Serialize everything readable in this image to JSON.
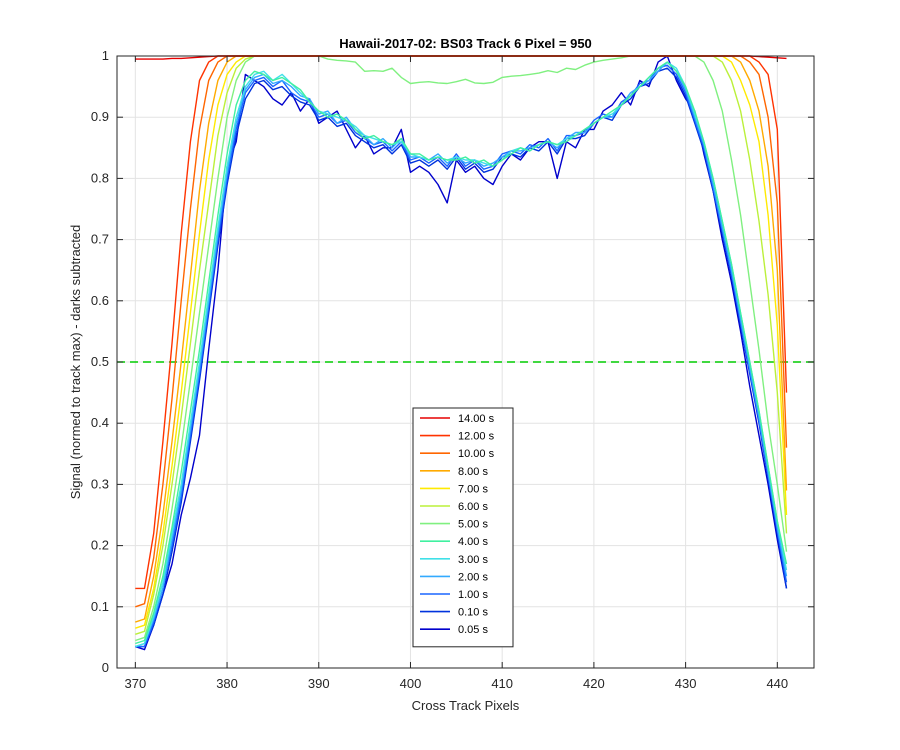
{
  "chart_data": {
    "type": "line",
    "title": "Hawaii-2017-02: BS03  Track 6 Pixel = 950",
    "xlabel": "Cross Track Pixels",
    "ylabel": "Signal (normed to track max) - darks subtracted",
    "xlim": [
      368,
      444
    ],
    "ylim": [
      0,
      1
    ],
    "xticks": [
      370,
      380,
      390,
      400,
      410,
      420,
      430,
      440
    ],
    "yticks": [
      0,
      0.1,
      0.2,
      0.3,
      0.4,
      0.5,
      0.6,
      0.7,
      0.8,
      0.9,
      1
    ],
    "ytick_labels": [
      "0",
      "0.1",
      "0.2",
      "0.3",
      "0.4",
      "0.5",
      "0.6",
      "0.7",
      "0.8",
      "0.9",
      "1"
    ],
    "grid": true,
    "legend_position": "bottom-center",
    "reference_line": {
      "y": 0.5,
      "style": "dashed",
      "color": "#00cc00"
    },
    "x": [
      370,
      371,
      372,
      373,
      374,
      375,
      376,
      377,
      378,
      379,
      380,
      381,
      382,
      383,
      384,
      385,
      386,
      387,
      388,
      389,
      390,
      391,
      392,
      393,
      394,
      395,
      396,
      397,
      398,
      399,
      400,
      401,
      402,
      403,
      404,
      405,
      406,
      407,
      408,
      409,
      410,
      411,
      412,
      413,
      414,
      415,
      416,
      417,
      418,
      419,
      420,
      421,
      422,
      423,
      424,
      425,
      426,
      427,
      428,
      429,
      430,
      431,
      432,
      433,
      434,
      435,
      436,
      437,
      438,
      439,
      440,
      441
    ],
    "series": [
      {
        "name": "14.00 s",
        "color": "#e60000",
        "values": [
          0.995,
          0.995,
          0.995,
          0.995,
          0.996,
          0.996,
          0.997,
          0.998,
          0.999,
          1,
          1,
          1,
          1,
          1,
          1,
          1,
          1,
          1,
          1,
          1,
          1,
          1,
          1,
          1,
          1,
          1,
          1,
          1,
          1,
          1,
          1,
          1,
          1,
          1,
          1,
          1,
          1,
          1,
          1,
          1,
          1,
          1,
          1,
          1,
          1,
          1,
          1,
          1,
          1,
          1,
          1,
          1,
          1,
          1,
          1,
          1,
          1,
          1,
          1,
          1,
          1,
          1,
          1,
          1,
          1,
          1,
          1,
          1,
          0.999,
          0.998,
          0.997,
          0.996
        ]
      },
      {
        "name": "12.00 s",
        "color": "#ff3300",
        "values": [
          0.13,
          0.13,
          0.22,
          0.37,
          0.53,
          0.71,
          0.86,
          0.96,
          0.99,
          1,
          1,
          1,
          1,
          1,
          1,
          1,
          1,
          1,
          1,
          1,
          1,
          1,
          1,
          1,
          1,
          1,
          1,
          1,
          1,
          1,
          1,
          1,
          1,
          1,
          1,
          1,
          1,
          1,
          1,
          1,
          1,
          1,
          1,
          1,
          1,
          1,
          1,
          1,
          1,
          1,
          1,
          1,
          1,
          1,
          1,
          1,
          1,
          1,
          1,
          1,
          1,
          1,
          1,
          1,
          1,
          1,
          1,
          1,
          0.99,
          0.97,
          0.88,
          0.45
        ]
      },
      {
        "name": "10.00 s",
        "color": "#ff6600",
        "values": [
          0.1,
          0.105,
          0.18,
          0.3,
          0.44,
          0.6,
          0.75,
          0.88,
          0.96,
          0.99,
          1,
          1,
          1,
          1,
          1,
          1,
          1,
          1,
          1,
          1,
          1,
          1,
          1,
          1,
          1,
          1,
          1,
          1,
          1,
          1,
          1,
          1,
          1,
          1,
          1,
          1,
          1,
          1,
          1,
          1,
          1,
          1,
          1,
          1,
          1,
          1,
          1,
          1,
          1,
          1,
          1,
          1,
          1,
          1,
          1,
          1,
          1,
          1,
          1,
          1,
          1,
          1,
          1,
          1,
          1,
          1,
          1,
          0.99,
          0.97,
          0.9,
          0.76,
          0.36
        ]
      },
      {
        "name": "8.00 s",
        "color": "#ffaa00",
        "values": [
          0.075,
          0.08,
          0.15,
          0.25,
          0.37,
          0.5,
          0.64,
          0.78,
          0.89,
          0.96,
          0.99,
          1,
          1,
          1,
          1,
          1,
          1,
          1,
          1,
          1,
          1,
          1,
          1,
          1,
          1,
          1,
          1,
          1,
          1,
          1,
          1,
          1,
          1,
          1,
          1,
          1,
          1,
          1,
          1,
          1,
          1,
          1,
          1,
          1,
          1,
          1,
          1,
          1,
          1,
          1,
          1,
          1,
          1,
          1,
          1,
          1,
          1,
          1,
          1,
          1,
          1,
          1,
          1,
          1,
          1,
          1,
          0.99,
          0.96,
          0.91,
          0.82,
          0.65,
          0.29
        ]
      },
      {
        "name": "7.00 s",
        "color": "#ffea00",
        "values": [
          0.065,
          0.07,
          0.13,
          0.22,
          0.33,
          0.45,
          0.58,
          0.71,
          0.83,
          0.92,
          0.97,
          0.99,
          1,
          1,
          1,
          1,
          1,
          1,
          1,
          1,
          1,
          1,
          1,
          1,
          1,
          1,
          1,
          1,
          1,
          1,
          1,
          1,
          1,
          1,
          1,
          1,
          1,
          1,
          1,
          1,
          1,
          1,
          1,
          1,
          1,
          1,
          1,
          1,
          1,
          1,
          1,
          1,
          1,
          1,
          1,
          1,
          1,
          1,
          1,
          1,
          1,
          1,
          1,
          1,
          1,
          0.99,
          0.96,
          0.92,
          0.86,
          0.74,
          0.56,
          0.25
        ]
      },
      {
        "name": "6.00 s",
        "color": "#bbf03a",
        "values": [
          0.055,
          0.06,
          0.12,
          0.2,
          0.3,
          0.41,
          0.53,
          0.65,
          0.76,
          0.87,
          0.94,
          0.98,
          0.995,
          1,
          1,
          1,
          1,
          1,
          1,
          1,
          1,
          1,
          1,
          1,
          1,
          1,
          1,
          1,
          1,
          1,
          1,
          1,
          1,
          1,
          1,
          1,
          1,
          1,
          1,
          1,
          1,
          1,
          1,
          1,
          1,
          1,
          1,
          1,
          1,
          1,
          1,
          1,
          1,
          1,
          1,
          1,
          1,
          1,
          1,
          1,
          1,
          1,
          1,
          1,
          0.99,
          0.96,
          0.91,
          0.83,
          0.73,
          0.61,
          0.45,
          0.22
        ]
      },
      {
        "name": "5.00 s",
        "color": "#80f080",
        "values": [
          0.045,
          0.05,
          0.1,
          0.17,
          0.26,
          0.36,
          0.47,
          0.58,
          0.69,
          0.8,
          0.9,
          0.96,
          0.99,
          1,
          1,
          1,
          1,
          1,
          1,
          1,
          1,
          0.995,
          0.993,
          0.992,
          0.99,
          0.975,
          0.976,
          0.975,
          0.98,
          0.965,
          0.955,
          0.957,
          0.958,
          0.956,
          0.955,
          0.958,
          0.962,
          0.956,
          0.955,
          0.957,
          0.965,
          0.967,
          0.968,
          0.97,
          0.972,
          0.976,
          0.973,
          0.98,
          0.978,
          0.985,
          0.99,
          0.993,
          0.995,
          0.997,
          1,
          1,
          1,
          1,
          1,
          1,
          1,
          1,
          0.99,
          0.96,
          0.91,
          0.83,
          0.74,
          0.63,
          0.52,
          0.4,
          0.3,
          0.19
        ]
      },
      {
        "name": "4.00 s",
        "color": "#40f0a0",
        "values": [
          0.04,
          0.045,
          0.09,
          0.15,
          0.23,
          0.32,
          0.42,
          0.52,
          0.63,
          0.74,
          0.84,
          0.92,
          0.96,
          0.975,
          0.97,
          0.96,
          0.965,
          0.955,
          0.945,
          0.925,
          0.91,
          0.9,
          0.905,
          0.895,
          0.88,
          0.865,
          0.87,
          0.86,
          0.855,
          0.865,
          0.84,
          0.84,
          0.83,
          0.835,
          0.83,
          0.83,
          0.835,
          0.825,
          0.83,
          0.82,
          0.83,
          0.84,
          0.85,
          0.845,
          0.855,
          0.86,
          0.855,
          0.86,
          0.87,
          0.88,
          0.89,
          0.9,
          0.91,
          0.92,
          0.935,
          0.95,
          0.965,
          0.98,
          0.99,
          0.975,
          0.95,
          0.91,
          0.86,
          0.8,
          0.73,
          0.66,
          0.58,
          0.5,
          0.42,
          0.33,
          0.24,
          0.17
        ]
      },
      {
        "name": "3.00 s",
        "color": "#40e0e8",
        "values": [
          0.035,
          0.04,
          0.085,
          0.14,
          0.22,
          0.3,
          0.4,
          0.5,
          0.61,
          0.72,
          0.82,
          0.9,
          0.95,
          0.97,
          0.975,
          0.96,
          0.97,
          0.955,
          0.94,
          0.925,
          0.91,
          0.905,
          0.9,
          0.895,
          0.885,
          0.87,
          0.865,
          0.86,
          0.855,
          0.86,
          0.84,
          0.835,
          0.83,
          0.835,
          0.83,
          0.835,
          0.83,
          0.83,
          0.825,
          0.82,
          0.83,
          0.845,
          0.85,
          0.845,
          0.855,
          0.86,
          0.855,
          0.865,
          0.87,
          0.88,
          0.89,
          0.9,
          0.905,
          0.92,
          0.935,
          0.95,
          0.965,
          0.98,
          0.99,
          0.98,
          0.95,
          0.905,
          0.86,
          0.8,
          0.73,
          0.66,
          0.58,
          0.5,
          0.42,
          0.33,
          0.24,
          0.16
        ]
      },
      {
        "name": "2.00 s",
        "color": "#33aaff",
        "values": [
          0.035,
          0.04,
          0.08,
          0.13,
          0.21,
          0.29,
          0.39,
          0.49,
          0.6,
          0.71,
          0.81,
          0.89,
          0.945,
          0.965,
          0.97,
          0.955,
          0.96,
          0.95,
          0.935,
          0.93,
          0.905,
          0.91,
          0.89,
          0.9,
          0.88,
          0.87,
          0.855,
          0.865,
          0.85,
          0.865,
          0.835,
          0.835,
          0.83,
          0.84,
          0.825,
          0.835,
          0.825,
          0.83,
          0.82,
          0.825,
          0.835,
          0.845,
          0.845,
          0.85,
          0.855,
          0.86,
          0.85,
          0.865,
          0.875,
          0.875,
          0.89,
          0.9,
          0.9,
          0.92,
          0.94,
          0.95,
          0.96,
          0.975,
          0.99,
          0.975,
          0.945,
          0.9,
          0.855,
          0.79,
          0.72,
          0.65,
          0.57,
          0.49,
          0.41,
          0.32,
          0.23,
          0.15
        ]
      },
      {
        "name": "1.00 s",
        "color": "#1a66ff",
        "values": [
          0.035,
          0.035,
          0.075,
          0.13,
          0.2,
          0.28,
          0.38,
          0.48,
          0.59,
          0.7,
          0.8,
          0.88,
          0.94,
          0.96,
          0.965,
          0.95,
          0.96,
          0.94,
          0.93,
          0.925,
          0.9,
          0.905,
          0.89,
          0.895,
          0.875,
          0.865,
          0.855,
          0.86,
          0.845,
          0.86,
          0.83,
          0.835,
          0.825,
          0.835,
          0.82,
          0.84,
          0.82,
          0.83,
          0.815,
          0.82,
          0.84,
          0.845,
          0.84,
          0.855,
          0.85,
          0.865,
          0.845,
          0.87,
          0.87,
          0.875,
          0.895,
          0.905,
          0.9,
          0.925,
          0.935,
          0.955,
          0.96,
          0.98,
          0.985,
          0.97,
          0.94,
          0.895,
          0.85,
          0.785,
          0.715,
          0.645,
          0.565,
          0.485,
          0.405,
          0.315,
          0.225,
          0.14
        ]
      },
      {
        "name": "0.10 s",
        "color": "#0033dd",
        "values": [
          0.035,
          0.035,
          0.07,
          0.12,
          0.19,
          0.27,
          0.37,
          0.47,
          0.58,
          0.69,
          0.79,
          0.87,
          0.93,
          0.955,
          0.96,
          0.945,
          0.95,
          0.935,
          0.925,
          0.92,
          0.895,
          0.9,
          0.885,
          0.89,
          0.87,
          0.86,
          0.85,
          0.855,
          0.84,
          0.855,
          0.825,
          0.83,
          0.82,
          0.83,
          0.815,
          0.835,
          0.815,
          0.825,
          0.81,
          0.815,
          0.835,
          0.84,
          0.835,
          0.85,
          0.845,
          0.86,
          0.84,
          0.865,
          0.865,
          0.87,
          0.89,
          0.9,
          0.895,
          0.92,
          0.93,
          0.95,
          0.955,
          0.975,
          0.98,
          0.965,
          0.935,
          0.89,
          0.845,
          0.78,
          0.71,
          0.64,
          0.56,
          0.48,
          0.4,
          0.31,
          0.22,
          0.13
        ]
      },
      {
        "name": "0.05 s",
        "color": "#0000cc",
        "values": [
          0.035,
          0.03,
          0.07,
          0.12,
          0.17,
          0.25,
          0.31,
          0.38,
          0.52,
          0.65,
          0.82,
          0.86,
          0.97,
          0.96,
          0.95,
          0.93,
          0.92,
          0.94,
          0.91,
          0.93,
          0.89,
          0.9,
          0.91,
          0.88,
          0.85,
          0.87,
          0.84,
          0.85,
          0.85,
          0.88,
          0.81,
          0.82,
          0.81,
          0.79,
          0.76,
          0.83,
          0.81,
          0.82,
          0.8,
          0.79,
          0.82,
          0.84,
          0.83,
          0.85,
          0.86,
          0.86,
          0.8,
          0.86,
          0.85,
          0.88,
          0.88,
          0.91,
          0.92,
          0.94,
          0.92,
          0.96,
          0.95,
          0.99,
          1,
          0.96,
          0.93,
          0.91,
          0.84,
          0.78,
          0.7,
          0.63,
          0.55,
          0.46,
          0.38,
          0.3,
          0.21,
          0.13
        ]
      }
    ]
  }
}
